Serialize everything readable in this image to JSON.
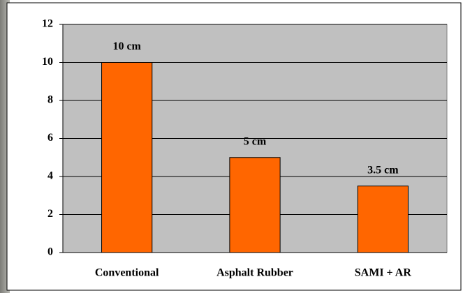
{
  "chart_data": {
    "type": "bar",
    "categories": [
      "Conventional",
      "Asphalt Rubber",
      "SAMI + AR"
    ],
    "values": [
      10,
      5,
      3.5
    ],
    "value_labels": [
      "10 cm",
      "5 cm",
      "3.5 cm"
    ],
    "color": "#ff6600",
    "ylim": [
      0,
      12
    ],
    "yticks": [
      0,
      2,
      4,
      6,
      8,
      10,
      12
    ],
    "grid": true
  }
}
